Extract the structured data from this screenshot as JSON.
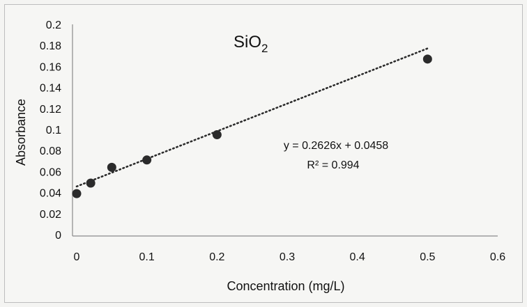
{
  "chart_data": {
    "type": "scatter",
    "title": "SiO",
    "title_subscript": "2",
    "xlabel": "Concentration (mg/L)",
    "ylabel": "Absorbance",
    "xlim": [
      0,
      0.6
    ],
    "ylim": [
      0,
      0.2
    ],
    "x_ticks": [
      "0",
      "0.1",
      "0.2",
      "0.3",
      "0.4",
      "0.5",
      "0.6"
    ],
    "y_ticks": [
      "0",
      "0.02",
      "0.04",
      "0.06",
      "0.08",
      "0.1",
      "0.12",
      "0.14",
      "0.16",
      "0.18",
      "0.2"
    ],
    "grid": false,
    "series": [
      {
        "x": [
          0,
          0.02,
          0.05,
          0.1,
          0.2,
          0.5
        ],
        "y": [
          0.039,
          0.049,
          0.064,
          0.071,
          0.095,
          0.167
        ],
        "color": "#2b2b2b"
      }
    ],
    "trendline": {
      "type": "linear",
      "slope": 0.2626,
      "intercept": 0.0458,
      "x_range": [
        0,
        0.5
      ],
      "style": "dotted",
      "color": "#2b2b2b",
      "equation_label": "y = 0.2626x + 0.0458",
      "r2_label": "R² = 0.994"
    }
  }
}
